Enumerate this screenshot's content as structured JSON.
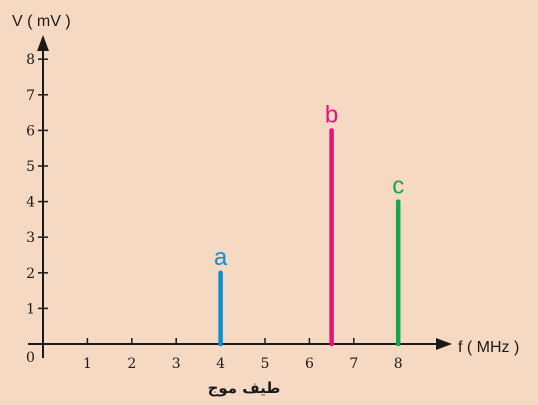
{
  "chart_data": {
    "type": "bar",
    "ylabel": "V ( mV )",
    "xlabel": "f ( MHz )",
    "caption": "طیف موج",
    "origin_label": "0",
    "xlim": [
      0,
      9.2
    ],
    "ylim": [
      0,
      8.5
    ],
    "x_ticks": [
      1,
      2,
      3,
      4,
      5,
      6,
      7,
      8
    ],
    "y_ticks": [
      1,
      2,
      3,
      4,
      5,
      6,
      7,
      8
    ],
    "bars": [
      {
        "label": "a",
        "x": 4,
        "value": 2,
        "color": "#0a8fd4"
      },
      {
        "label": "b",
        "x": 6.5,
        "value": 6,
        "color": "#e6137f"
      },
      {
        "label": "c",
        "x": 8,
        "value": 4,
        "color": "#13a64a"
      }
    ]
  }
}
